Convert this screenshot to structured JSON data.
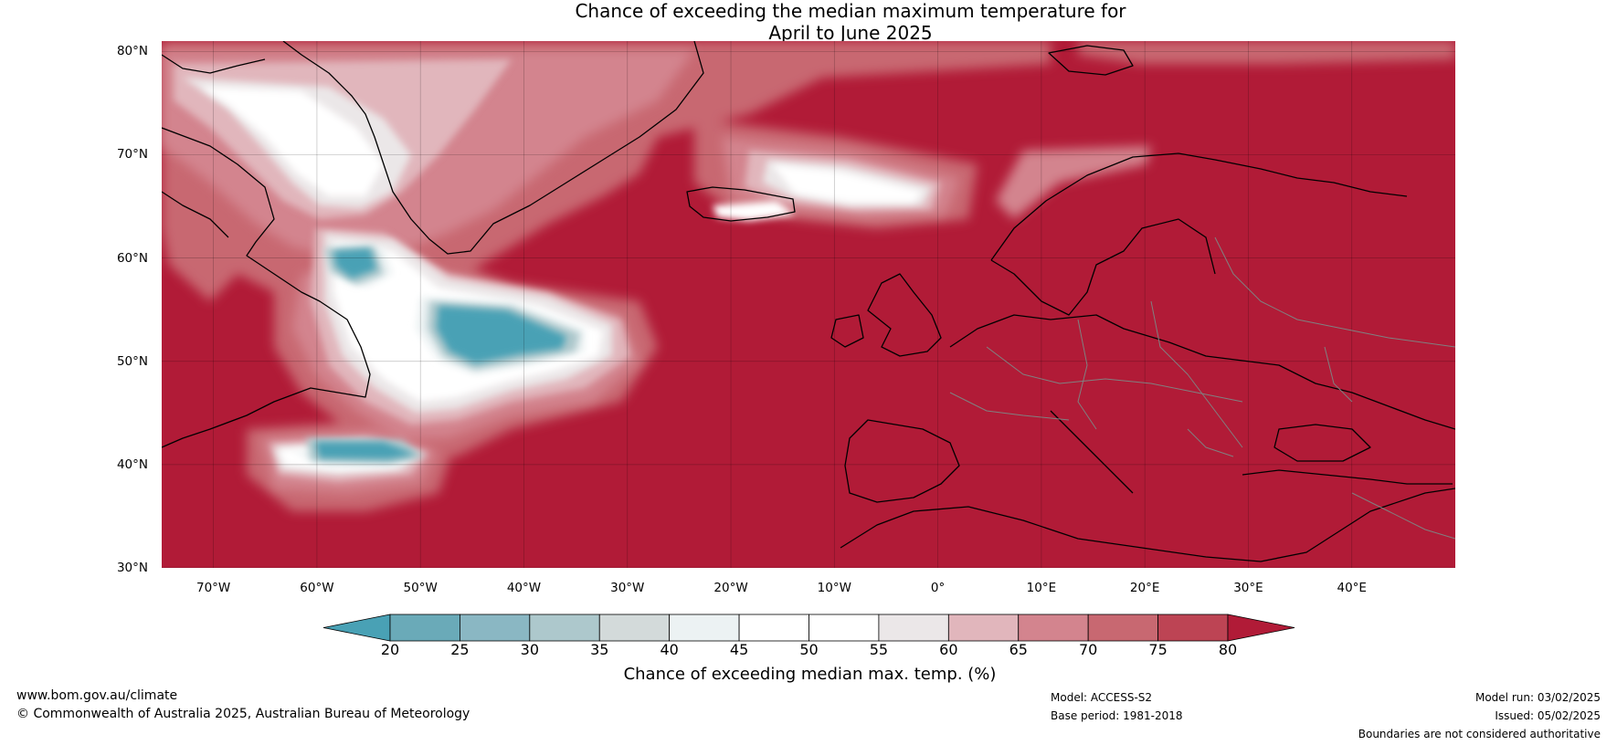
{
  "title": {
    "line1": "Chance of exceeding the median maximum temperature for",
    "line2": "April to June 2025"
  },
  "axes": {
    "lat_labels": [
      "80°N",
      "70°N",
      "60°N",
      "50°N",
      "40°N",
      "30°N"
    ],
    "lon_labels": [
      "70°W",
      "60°W",
      "50°W",
      "40°W",
      "30°W",
      "20°W",
      "10°W",
      "0°",
      "10°E",
      "20°E",
      "30°E",
      "40°E"
    ],
    "lat_range": [
      30,
      81
    ],
    "lon_range": [
      -75,
      50
    ]
  },
  "colorbar": {
    "title": "Chance of exceeding median max. temp. (%)",
    "ticks": [
      "20",
      "25",
      "30",
      "35",
      "40",
      "45",
      "50",
      "55",
      "60",
      "65",
      "70",
      "75",
      "80"
    ],
    "colors": [
      "#49a1b5",
      "#6aaab8",
      "#8ab7c3",
      "#adc8cc",
      "#d3dada",
      "#ecf2f3",
      "#ffffff",
      "#ffffff",
      "#ebe7e8",
      "#e1b6bc",
      "#d3848e",
      "#c86871",
      "#bd4454",
      "#b11b37"
    ]
  },
  "colors": {
    "dominant": "#b11b37",
    "coastline": "#000000",
    "border": "#808080"
  },
  "footer": {
    "url": "www.bom.gov.au/climate",
    "copyright": "© Commonwealth of Australia 2025, Australian Bureau of Meteorology",
    "model": "Model: ACCESS-S2",
    "base_period": "Base period: 1981-2018",
    "model_run": "Model run: 03/02/2025",
    "issued": "Issued: 05/02/2025",
    "disclaimer": "Boundaries are not considered authoritative"
  }
}
